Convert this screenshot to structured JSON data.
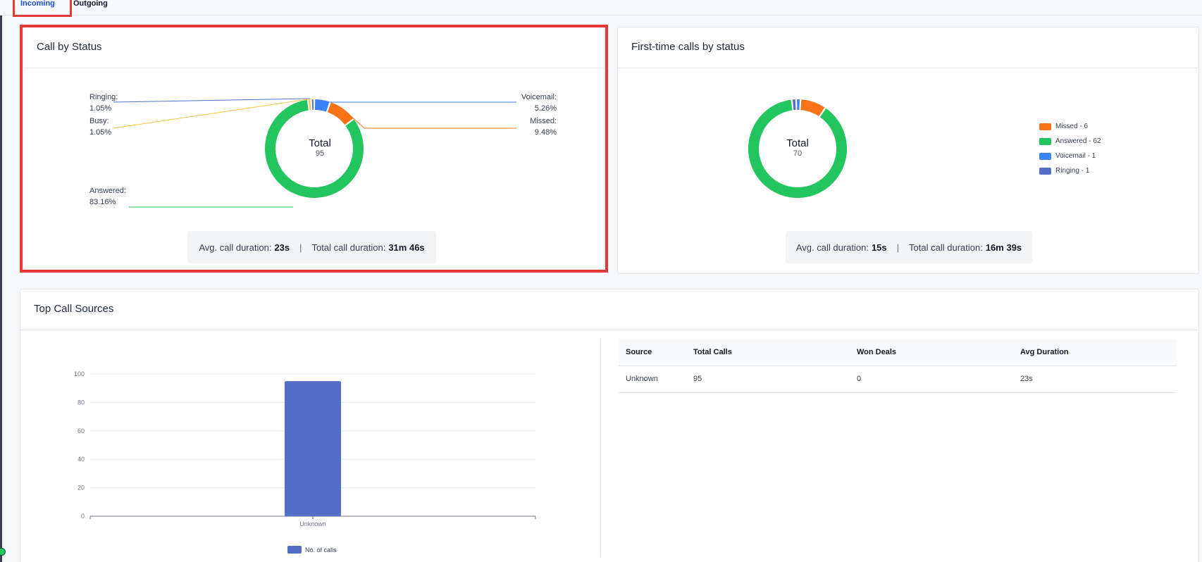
{
  "tabs": {
    "incoming": "Incoming",
    "outgoing": "Outgoing"
  },
  "call_by_status": {
    "title": "Call by Status",
    "total_label": "Total",
    "total_value": "95",
    "labels": {
      "ringing_name": "Ringing:",
      "ringing_pct": "1.05%",
      "busy_name": "Busy:",
      "busy_pct": "1.05%",
      "answered_name": "Answered:",
      "answered_pct": "83.16%",
      "voicemail_name": "Voicemail:",
      "voicemail_pct": "5.26%",
      "missed_name": "Missed:",
      "missed_pct": "9.48%"
    },
    "avg_label": "Avg. call duration:",
    "avg_value": "23s",
    "total_dur_label": "Total call duration:",
    "total_dur_value": "31m 46s",
    "separator": "|"
  },
  "first_time": {
    "title": "First-time calls by status",
    "total_label": "Total",
    "total_value": "70",
    "legend": [
      "Missed - 6",
      "Answered - 62",
      "Voicemail - 1",
      "Ringing - 1"
    ],
    "avg_label": "Avg. call duration:",
    "avg_value": "15s",
    "total_dur_label": "Total call duration:",
    "total_dur_value": "16m 39s",
    "separator": "|"
  },
  "top_sources": {
    "title": "Top Call Sources",
    "table": {
      "headers": [
        "Source",
        "Total Calls",
        "Won Deals",
        "Avg Duration"
      ],
      "rows": [
        [
          "Unknown",
          "95",
          "0",
          "23s"
        ]
      ]
    }
  },
  "colors": {
    "answered": "#22c55e",
    "missed": "#f97316",
    "voicemail": "#3b82f6",
    "ringing": "#5470c6",
    "busy": "#f5c542",
    "bar": "#5470c6"
  },
  "chart_data": [
    {
      "type": "pie",
      "title": "Call by Status",
      "categories": [
        "Answered",
        "Missed",
        "Voicemail",
        "Ringing",
        "Busy"
      ],
      "values": [
        79,
        9,
        5,
        1,
        1
      ],
      "percent_labels": [
        "83.16%",
        "9.48%",
        "5.26%",
        "1.05%",
        "1.05%"
      ],
      "donut": true,
      "center_text": [
        "Total",
        "95"
      ]
    },
    {
      "type": "pie",
      "title": "First-time calls by status",
      "categories": [
        "Missed",
        "Answered",
        "Voicemail",
        "Ringing"
      ],
      "values": [
        6,
        62,
        1,
        1
      ],
      "donut": true,
      "center_text": [
        "Total",
        "70"
      ],
      "legend_position": "right"
    },
    {
      "type": "bar",
      "categories": [
        "Unknown"
      ],
      "series": [
        {
          "name": "No. of calls",
          "values": [
            95
          ]
        }
      ],
      "ylim": [
        0,
        100
      ],
      "yticks": [
        "0",
        "20",
        "40",
        "60",
        "80",
        "100"
      ],
      "grid": true,
      "legend_position": "bottom"
    }
  ]
}
